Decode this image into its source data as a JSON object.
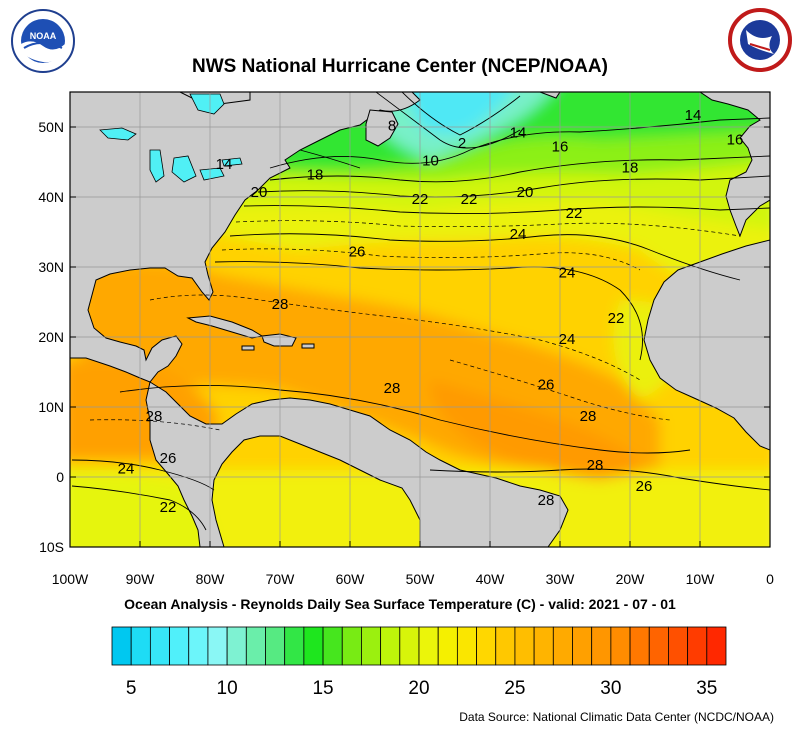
{
  "header": {
    "title": "NWS National Hurricane Center (NCEP/NOAA)",
    "left_logo_icon": "noaa-logo-icon",
    "right_logo_icon": "national-weather-service-logo-icon"
  },
  "map": {
    "subtitle": "Ocean Analysis - Reynolds Daily Sea Surface Temperature (C) - valid: 2021 - 07 - 01",
    "lat_labels": [
      "50N",
      "40N",
      "30N",
      "20N",
      "10N",
      "0",
      "10S"
    ],
    "lon_labels": [
      "100W",
      "90W",
      "80W",
      "70W",
      "60W",
      "50W",
      "40W",
      "30W",
      "20W",
      "10W",
      "0"
    ],
    "contour_labels": [
      {
        "text": "14",
        "lon": -11,
        "lat": 51
      },
      {
        "text": "8",
        "lon": -54,
        "lat": 49.5
      },
      {
        "text": "14",
        "lon": -36,
        "lat": 48.5
      },
      {
        "text": "16",
        "lon": -5,
        "lat": 47.5
      },
      {
        "text": "2",
        "lon": -44,
        "lat": 47
      },
      {
        "text": "16",
        "lon": -30,
        "lat": 46.5
      },
      {
        "text": "10",
        "lon": -48.5,
        "lat": 44.5
      },
      {
        "text": "14",
        "lon": -78,
        "lat": 44
      },
      {
        "text": "18",
        "lon": -20,
        "lat": 43.5
      },
      {
        "text": "18",
        "lon": -65,
        "lat": 42.5
      },
      {
        "text": "20",
        "lon": -73,
        "lat": 40
      },
      {
        "text": "20",
        "lon": -35,
        "lat": 40
      },
      {
        "text": "22",
        "lon": -50,
        "lat": 39
      },
      {
        "text": "22",
        "lon": -43,
        "lat": 39
      },
      {
        "text": "22",
        "lon": -28,
        "lat": 37
      },
      {
        "text": "24",
        "lon": -36,
        "lat": 34
      },
      {
        "text": "26",
        "lon": -59,
        "lat": 31.5
      },
      {
        "text": "24",
        "lon": -29,
        "lat": 28.5
      },
      {
        "text": "28",
        "lon": -70,
        "lat": 24
      },
      {
        "text": "22",
        "lon": -22,
        "lat": 22
      },
      {
        "text": "24",
        "lon": -29,
        "lat": 19
      },
      {
        "text": "26",
        "lon": -32,
        "lat": 12.5
      },
      {
        "text": "28",
        "lon": -54,
        "lat": 12
      },
      {
        "text": "28",
        "lon": -26,
        "lat": 8
      },
      {
        "text": "28",
        "lon": -88,
        "lat": 8
      },
      {
        "text": "26",
        "lon": -86,
        "lat": 2
      },
      {
        "text": "28",
        "lon": -25,
        "lat": 1
      },
      {
        "text": "24",
        "lon": -92,
        "lat": 0.5
      },
      {
        "text": "26",
        "lon": -18,
        "lat": -2
      },
      {
        "text": "28",
        "lon": -32,
        "lat": -4
      },
      {
        "text": "22",
        "lon": -86,
        "lat": -5
      }
    ]
  },
  "colorbar": {
    "labels": [
      "5",
      "10",
      "15",
      "20",
      "25",
      "30",
      "35"
    ],
    "min": 4,
    "max": 36,
    "colors": [
      "#00c8f0",
      "#1edcf5",
      "#37e6f7",
      "#50f0fa",
      "#6cf5fa",
      "#8af7f5",
      "#7ef2d2",
      "#6aeeaa",
      "#56ea82",
      "#32e646",
      "#1ee61e",
      "#46e61e",
      "#78eb14",
      "#9bf00f",
      "#bef50a",
      "#d7f50a",
      "#ebf50a",
      "#f5f000",
      "#fae600",
      "#ffd700",
      "#ffc800",
      "#ffbe00",
      "#ffb400",
      "#ffaa00",
      "#ffa000",
      "#ff9600",
      "#ff8c00",
      "#ff7800",
      "#ff6400",
      "#ff5000",
      "#ff3c00",
      "#ff2800"
    ]
  },
  "footer": {
    "source": "Data Source: National Climatic Data Center (NCDC/NOAA)"
  }
}
